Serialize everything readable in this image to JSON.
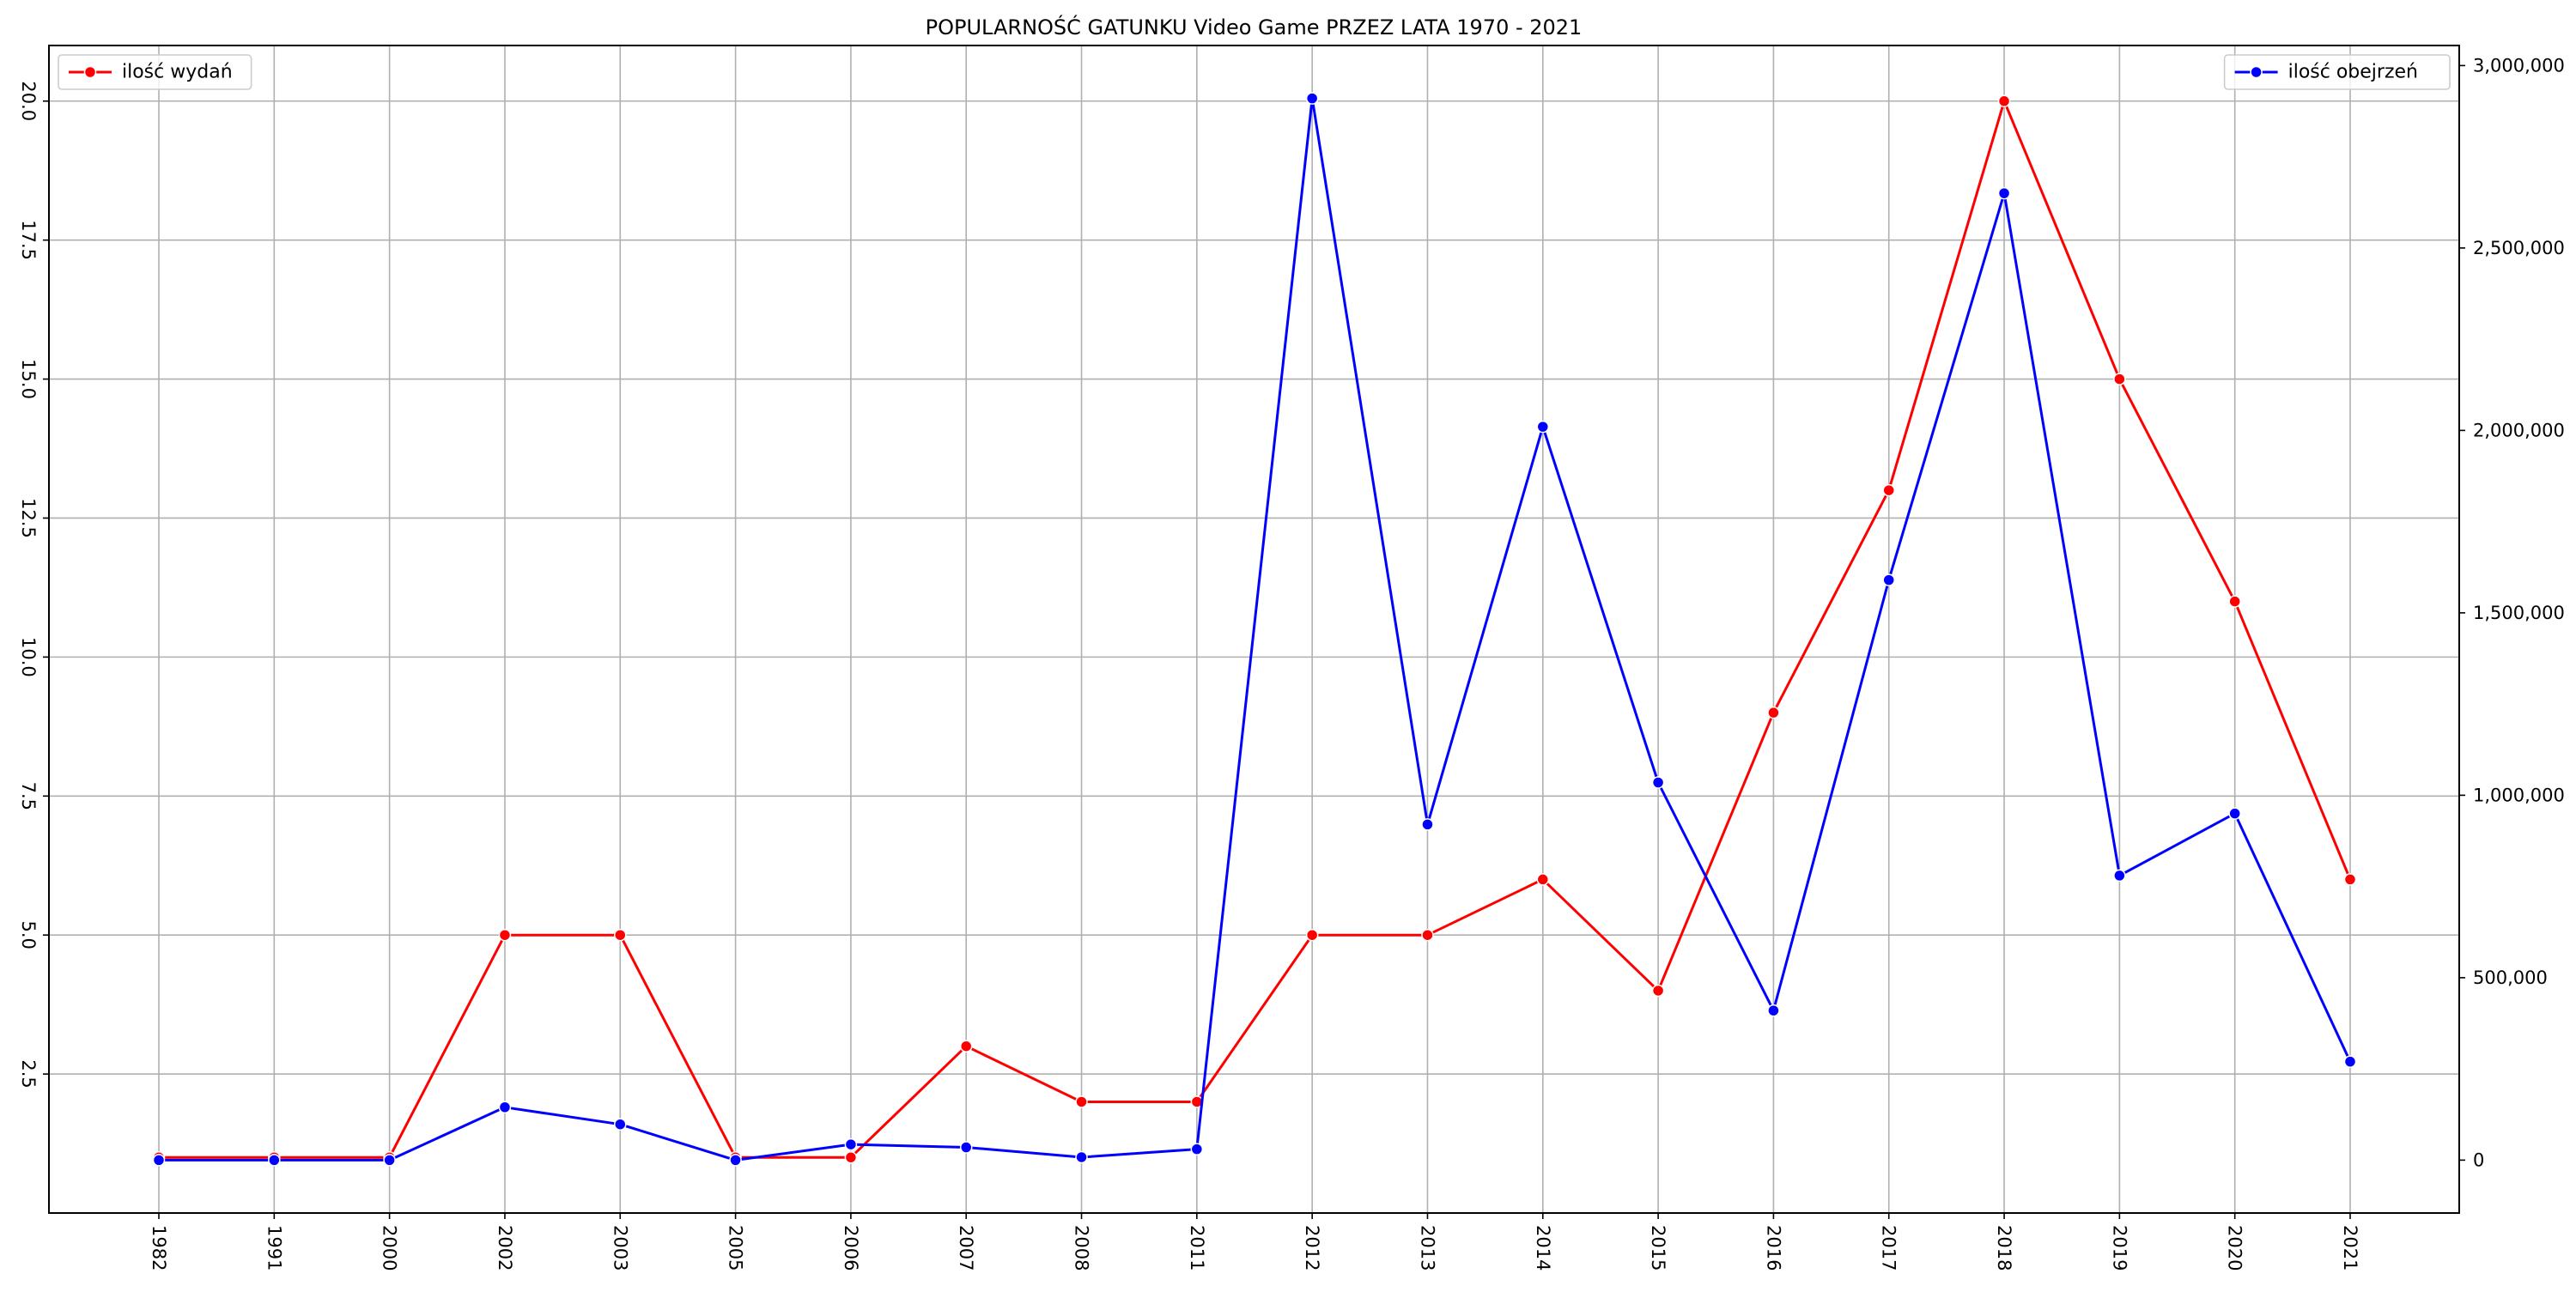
{
  "chart_data": {
    "type": "line",
    "title": "POPULARNOŚĆ GATUNKU Video Game PRZEZ LATA 1970 - 2021",
    "xlabel": "",
    "ylabel": "",
    "y2label": "",
    "grid": true,
    "categories": [
      "1982",
      "1991",
      "2000",
      "2002",
      "2003",
      "2005",
      "2006",
      "2007",
      "2008",
      "2011",
      "2012",
      "2013",
      "2014",
      "2015",
      "2016",
      "2017",
      "2018",
      "2019",
      "2020",
      "2021"
    ],
    "y_ticks": [
      "2.5",
      "5.0",
      "7.5",
      "10.0",
      "12.5",
      "15.0",
      "17.5",
      "20.0"
    ],
    "y2_ticks": [
      "0",
      "500,000",
      "1,000,000",
      "1,500,000",
      "2,000,000",
      "2,500,000",
      "3,000,000"
    ],
    "ylim": [
      0,
      21.0
    ],
    "y2lim": [
      -145000,
      3055000
    ],
    "series": [
      {
        "name": "ilość wydań",
        "axis": "left",
        "color": "#ff0000",
        "marker": "circle",
        "legend_position": "upper left",
        "values": [
          1,
          1,
          1,
          5,
          5,
          1,
          1,
          3,
          2,
          2,
          5,
          5,
          6,
          4,
          9,
          13,
          20,
          15,
          11,
          6
        ]
      },
      {
        "name": "ilość obejrzeń",
        "axis": "right",
        "color": "#0000ff",
        "marker": "circle",
        "legend_position": "upper right",
        "values": [
          0,
          0,
          0,
          145000,
          98000,
          0,
          43000,
          35000,
          8000,
          30000,
          2910000,
          920000,
          2010000,
          1035000,
          410000,
          1590000,
          2650000,
          780000,
          950000,
          270000
        ]
      }
    ]
  }
}
